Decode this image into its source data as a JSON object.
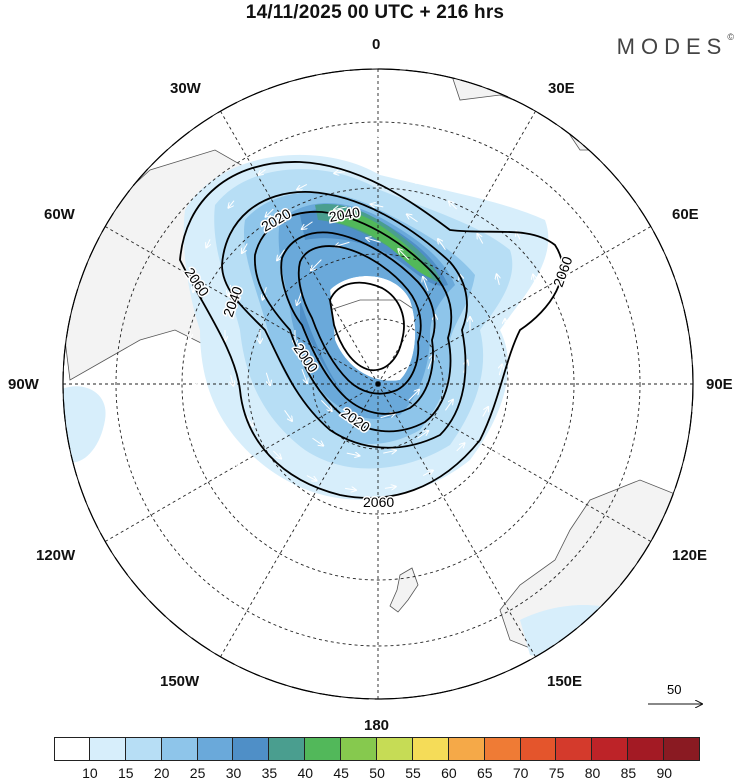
{
  "title": "14/11/2025  00 UTC  + 216 hrs",
  "brand": "MODES",
  "brand_mark": "©",
  "longitude_labels": {
    "lon_0": "0",
    "lon_30e": "30E",
    "lon_60e": "60E",
    "lon_90e": "90E",
    "lon_120e": "120E",
    "lon_150e": "150E",
    "lon_180": "180",
    "lon_150w": "150W",
    "lon_120w": "120W",
    "lon_90w": "90W",
    "lon_60w": "60W",
    "lon_30w": "30W"
  },
  "contour_labels": [
    "2000",
    "2020",
    "2020",
    "2040",
    "2040",
    "2060",
    "2060",
    "2060"
  ],
  "reference_vector": {
    "label": "50"
  },
  "colorbar": {
    "ticks": [
      "10",
      "15",
      "20",
      "25",
      "30",
      "35",
      "40",
      "45",
      "50",
      "55",
      "60",
      "65",
      "70",
      "75",
      "80",
      "85",
      "90"
    ],
    "colors": [
      "#ffffff",
      "#d7eefb",
      "#b7def5",
      "#8ec5ea",
      "#6aa9da",
      "#4f8fc7",
      "#4a9e8f",
      "#52b85a",
      "#86c94e",
      "#c6dc55",
      "#f5dc58",
      "#f5a948",
      "#ef7b35",
      "#e4552c",
      "#d43a2c",
      "#bd2328",
      "#a31a24",
      "#8a1a22"
    ]
  }
}
